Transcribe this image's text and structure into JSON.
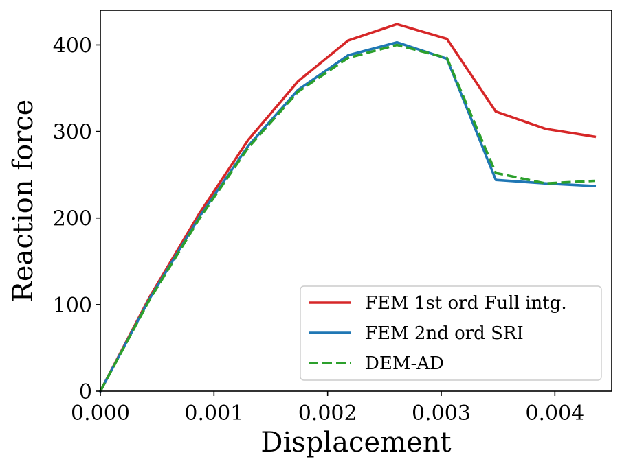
{
  "chart_data": {
    "type": "line",
    "xlabel": "Displacement",
    "ylabel": "Reaction force",
    "xlim": [
      0.0,
      0.0045
    ],
    "ylim": [
      0,
      440
    ],
    "xticks": [
      "0.000",
      "0.001",
      "0.002",
      "0.003",
      "0.004"
    ],
    "xtick_values": [
      0.0,
      0.001,
      0.002,
      0.003,
      0.004
    ],
    "yticks": [
      "0",
      "100",
      "200",
      "300",
      "400"
    ],
    "ytick_values": [
      0,
      100,
      200,
      300,
      400
    ],
    "grid": false,
    "legend_position": "lower-right",
    "series": [
      {
        "name": "FEM 1st ord Full intg.",
        "color": "#d62728",
        "style": "solid",
        "points": [
          [
            0.0,
            0
          ],
          [
            0.00043,
            108
          ],
          [
            0.00087,
            205
          ],
          [
            0.0013,
            290
          ],
          [
            0.00174,
            358
          ],
          [
            0.00218,
            405
          ],
          [
            0.00261,
            424
          ],
          [
            0.00305,
            407
          ],
          [
            0.00348,
            323
          ],
          [
            0.00392,
            303
          ],
          [
            0.00435,
            294
          ]
        ]
      },
      {
        "name": "FEM 2nd ord SRI",
        "color": "#1f77b4",
        "style": "solid",
        "points": [
          [
            0.0,
            0
          ],
          [
            0.00043,
            106
          ],
          [
            0.00087,
            201
          ],
          [
            0.0013,
            283
          ],
          [
            0.00174,
            348
          ],
          [
            0.00218,
            388
          ],
          [
            0.00261,
            403
          ],
          [
            0.00305,
            384
          ],
          [
            0.00348,
            244
          ],
          [
            0.00392,
            240
          ],
          [
            0.00435,
            237
          ]
        ]
      },
      {
        "name": "DEM-AD",
        "color": "#2ca02c",
        "style": "dashed",
        "points": [
          [
            0.0,
            0
          ],
          [
            0.00043,
            105
          ],
          [
            0.00087,
            199
          ],
          [
            0.0013,
            281
          ],
          [
            0.00174,
            346
          ],
          [
            0.00218,
            385
          ],
          [
            0.00261,
            400
          ],
          [
            0.00305,
            385
          ],
          [
            0.00348,
            252
          ],
          [
            0.00392,
            240
          ],
          [
            0.00435,
            243
          ]
        ]
      }
    ]
  }
}
